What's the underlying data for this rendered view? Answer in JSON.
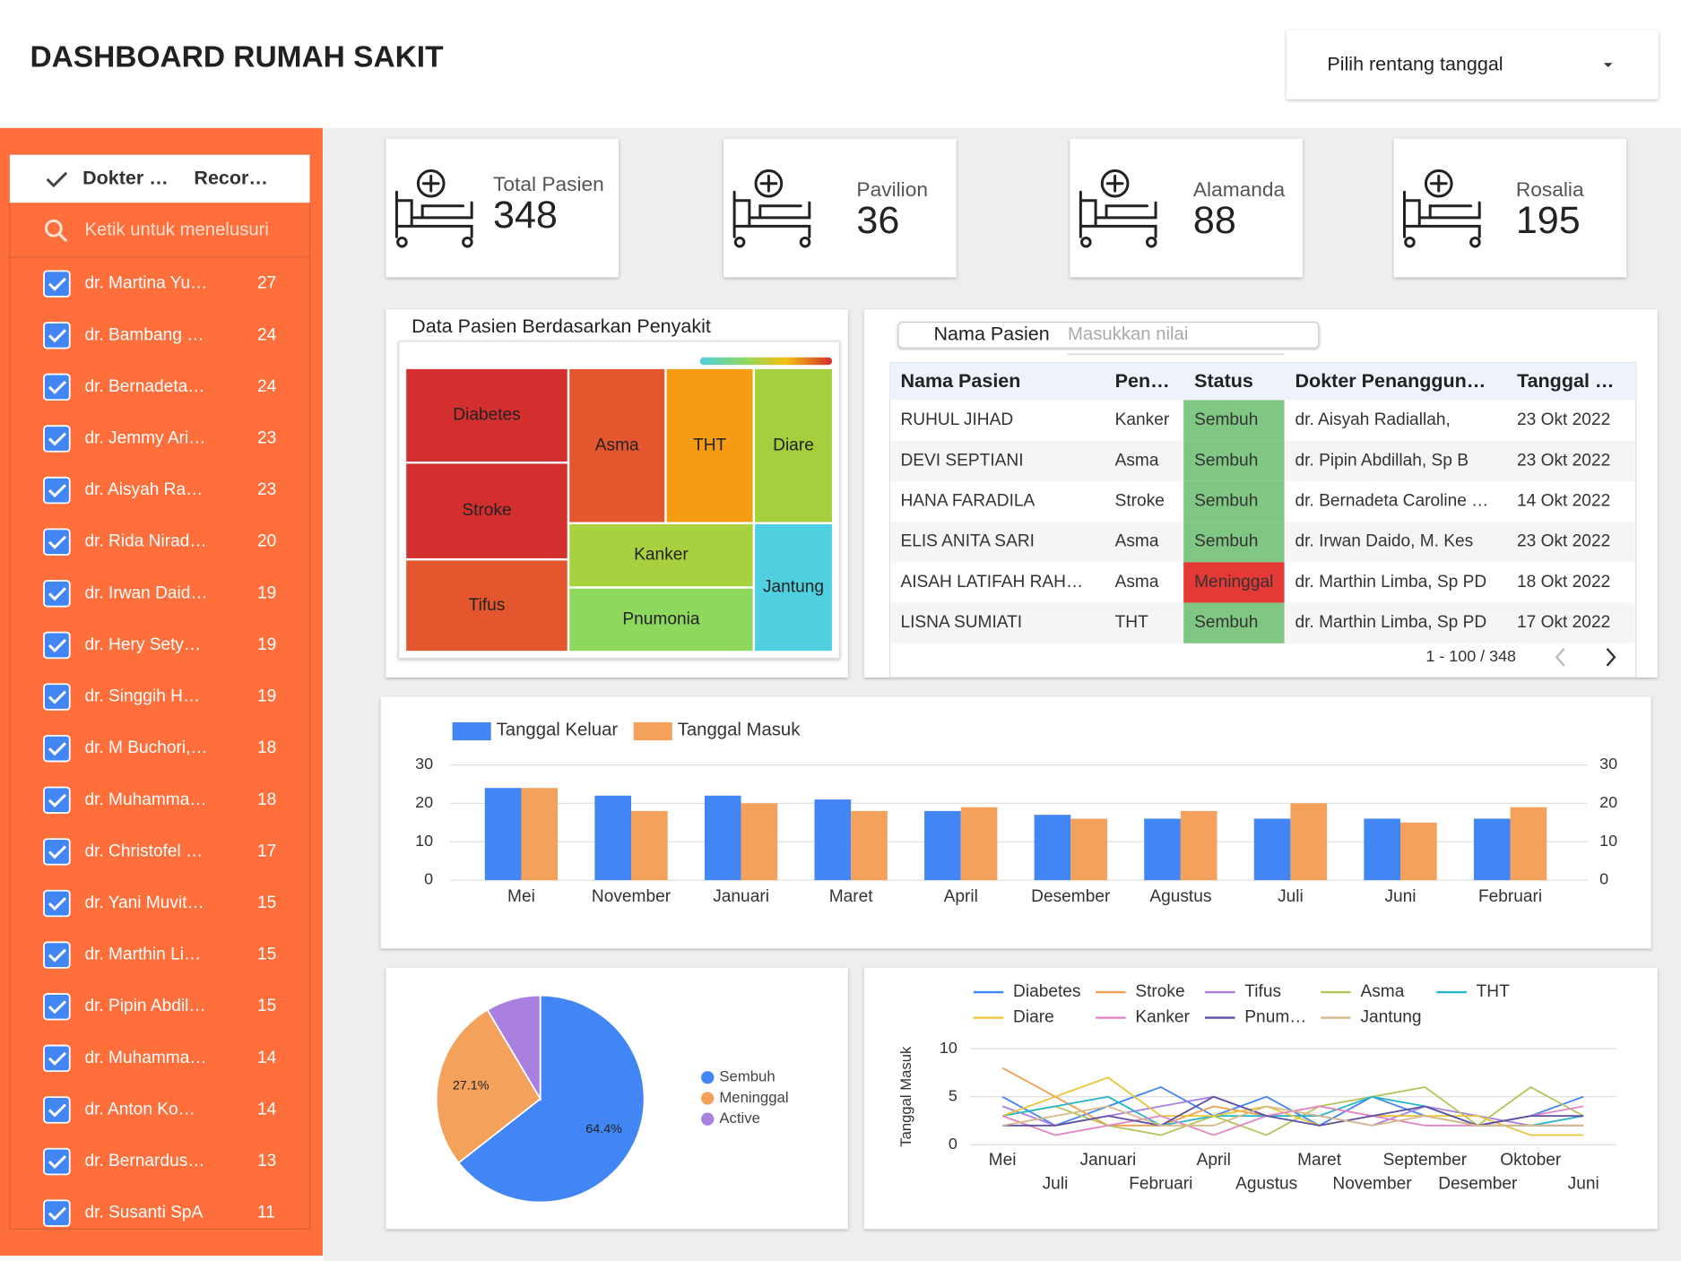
{
  "header": {
    "title": "DASHBOARD RUMAH SAKIT",
    "date_range_picker": "Pilih rentang tanggal"
  },
  "doctor_filter": {
    "columns": [
      "Dokter …",
      "Recor…"
    ],
    "search_placeholder": "Ketik untuk menelusuri",
    "rows": [
      [
        "dr. Martina Yu…",
        27
      ],
      [
        "dr. Bambang …",
        24
      ],
      [
        "dr. Bernadeta…",
        24
      ],
      [
        "dr. Jemmy Ari…",
        23
      ],
      [
        "dr. Aisyah Ra…",
        23
      ],
      [
        "dr. Rida Nirad…",
        20
      ],
      [
        "dr. Irwan Daid…",
        19
      ],
      [
        "dr. Hery Sety…",
        19
      ],
      [
        "dr. Singgih H…",
        19
      ],
      [
        "dr. M Buchori,…",
        18
      ],
      [
        "dr. Muhamma…",
        18
      ],
      [
        "dr. Christofel …",
        17
      ],
      [
        "dr. Yani Muvit…",
        15
      ],
      [
        "dr. Marthin Li…",
        15
      ],
      [
        "dr. Pipin Abdil…",
        15
      ],
      [
        "dr. Muhamma…",
        14
      ],
      [
        "dr. Anton Ko…",
        14
      ],
      [
        "dr. Bernardus…",
        13
      ],
      [
        "dr. Susanti SpA",
        11
      ]
    ]
  },
  "scorecards": [
    {
      "label": "Total Pasien",
      "value": 348
    },
    {
      "label": "Pavilion",
      "value": 36
    },
    {
      "label": "Alamanda",
      "value": 88
    },
    {
      "label": "Rosalia",
      "value": 195
    }
  ],
  "table": {
    "search_label": "Nama Pasien",
    "search_placeholder": "Masukkan nilai",
    "columns": [
      "Nama Pasien",
      "Pen…",
      "Status",
      "Dokter Penanggun…",
      "Tanggal …"
    ],
    "rows": [
      [
        "RUHUL JIHAD",
        "Kanker",
        "Sembuh",
        "dr. Aisyah Radiallah,",
        "23 Okt 2022"
      ],
      [
        "DEVI SEPTIANI",
        "Asma",
        "Sembuh",
        "dr. Pipin Abdillah, Sp B",
        "23 Okt 2022"
      ],
      [
        "HANA FARADILA",
        "Stroke",
        "Sembuh",
        "dr. Bernadeta Caroline …",
        "14 Okt 2022"
      ],
      [
        "ELIS ANITA SARI",
        "Asma",
        "Sembuh",
        "dr. Irwan Daido, M. Kes",
        "23 Okt 2022"
      ],
      [
        "AISAH LATIFAH RAH…",
        "Asma",
        "Meninggal",
        "dr. Marthin Limba, Sp PD",
        "18 Okt 2022"
      ],
      [
        "LISNA SUMIATI",
        "THT",
        "Sembuh",
        "dr. Marthin Limba, Sp PD",
        "17 Okt 2022"
      ]
    ],
    "status_colors": {
      "Sembuh": "#81c784",
      "Meninggal": "#e53935"
    },
    "pagination": "1 - 100 / 348"
  },
  "chart_data": [
    {
      "type": "treemap",
      "title": "Data Pasien Berdasarkan Penyakit",
      "categories": [
        "Diabetes",
        "Stroke",
        "Tifus",
        "Asma",
        "THT",
        "Diare",
        "Kanker",
        "Pnumonia",
        "Jantung"
      ],
      "values": [
        44,
        45,
        43,
        43,
        39,
        35,
        34,
        34,
        29
      ],
      "colors": [
        "#d32f2f",
        "#d32f2f",
        "#e4572e",
        "#e4572e",
        "#f59c12",
        "#a5cf3c",
        "#a9d13f",
        "#8fd85e",
        "#4fd0e0"
      ]
    },
    {
      "type": "bar",
      "categories": [
        "Mei",
        "November",
        "Januari",
        "Maret",
        "April",
        "Desember",
        "Agustus",
        "Juli",
        "Juni",
        "Februari"
      ],
      "series": [
        {
          "name": "Tanggal Keluar",
          "color": "#4285f4",
          "values": [
            24,
            22,
            22,
            21,
            18,
            17,
            16,
            16,
            16,
            16
          ]
        },
        {
          "name": "Tanggal Masuk",
          "color": "#f4a15b",
          "values": [
            24,
            18,
            20,
            18,
            19,
            16,
            18,
            20,
            15,
            19
          ]
        }
      ],
      "ylim": [
        0,
        30
      ],
      "yticks": [
        0,
        10,
        20,
        30
      ],
      "y2lim": [
        0,
        30
      ],
      "y2ticks": [
        0,
        10,
        20,
        30
      ],
      "grid": true
    },
    {
      "type": "pie",
      "categories": [
        "Sembuh",
        "Meninggal",
        "Active"
      ],
      "values": [
        64.4,
        27.1,
        8.5
      ],
      "value_labels": [
        "64.4%",
        "27.1%",
        null
      ],
      "colors": [
        "#4285f4",
        "#f4a15b",
        "#a97fe0"
      ]
    },
    {
      "type": "line",
      "y_label": "Tanggal Masuk",
      "categories": [
        "Mei",
        "Juli",
        "Januari",
        "Februari",
        "April",
        "Agustus",
        "Maret",
        "November",
        "September",
        "Desember",
        "Oktober",
        "Juni"
      ],
      "series": [
        {
          "name": "Diabetes",
          "color": "#4285f4",
          "values": [
            5,
            2,
            4,
            6,
            3,
            5,
            2,
            5,
            3,
            2,
            3,
            5
          ]
        },
        {
          "name": "Stroke",
          "color": "#f0a050",
          "values": [
            8,
            5,
            2,
            2,
            4,
            3,
            4,
            3,
            3,
            2,
            2,
            2
          ]
        },
        {
          "name": "Tifus",
          "color": "#a97fe0",
          "values": [
            4,
            2,
            3,
            4,
            5,
            3,
            3,
            2,
            4,
            3,
            2,
            2
          ]
        },
        {
          "name": "Asma",
          "color": "#b5c45a",
          "values": [
            3,
            4,
            2,
            1,
            3,
            1,
            4,
            5,
            6,
            2,
            6,
            3
          ]
        },
        {
          "name": "THT",
          "color": "#26b5c8",
          "values": [
            3,
            4,
            5,
            2,
            3,
            3,
            3,
            5,
            4,
            2,
            2,
            3
          ]
        },
        {
          "name": "Diare",
          "color": "#e8c53a",
          "values": [
            3,
            5,
            7,
            3,
            3,
            4,
            2,
            3,
            3,
            3,
            1,
            1
          ]
        },
        {
          "name": "Kanker",
          "color": "#e384c4",
          "values": [
            3,
            1,
            2,
            3,
            1,
            3,
            4,
            3,
            2,
            2,
            3,
            4
          ]
        },
        {
          "name": "Pnum…",
          "color": "#5b4fa5",
          "values": [
            2,
            2,
            3,
            2,
            5,
            3,
            2,
            3,
            4,
            2,
            3,
            3
          ]
        },
        {
          "name": "Jantung",
          "color": "#d8b98a",
          "values": [
            2,
            3,
            4,
            2,
            2,
            4,
            3,
            2,
            3,
            2,
            2,
            2
          ]
        }
      ],
      "ylim": [
        0,
        10
      ],
      "yticks": [
        0,
        5,
        10
      ],
      "grid": true
    }
  ]
}
